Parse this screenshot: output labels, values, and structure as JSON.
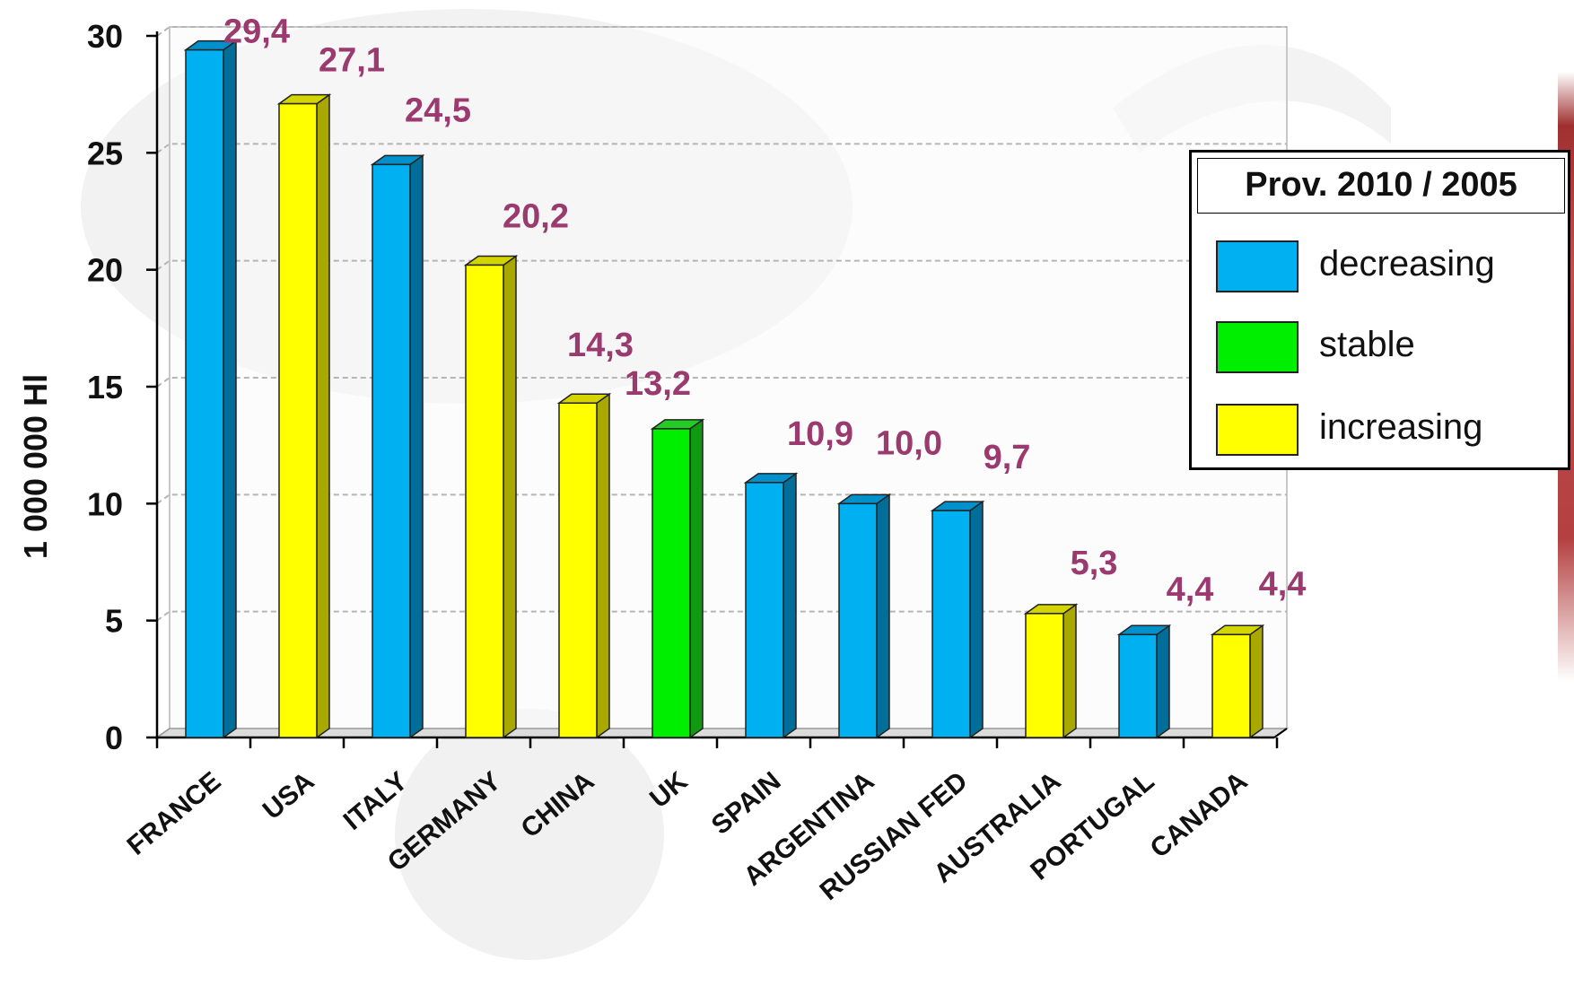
{
  "chart_data": {
    "type": "bar",
    "ylabel": "1 000 000  Hl",
    "ylim": [
      0,
      30
    ],
    "yticks": [
      "0",
      "5",
      "10",
      "15",
      "20",
      "25",
      "30"
    ],
    "grid": true,
    "categories": [
      "FRANCE",
      "USA",
      "ITALY",
      "GERMANY",
      "CHINA",
      "UK",
      "SPAIN",
      "ARGENTINA",
      "RUSSIAN FED",
      "AUSTRALIA",
      "PORTUGAL",
      "CANADA"
    ],
    "values": [
      29.4,
      27.1,
      24.5,
      20.2,
      14.3,
      13.2,
      10.9,
      10.0,
      9.7,
      5.3,
      4.4,
      4.4
    ],
    "value_labels": [
      "29,4",
      "27,1",
      "24,5",
      "20,2",
      "14,3",
      "13,2",
      "10,9",
      "10,0",
      "9,7",
      "5,3",
      "4,4",
      "4,4"
    ],
    "trend": [
      "decreasing",
      "increasing",
      "decreasing",
      "increasing",
      "increasing",
      "stable",
      "decreasing",
      "decreasing",
      "decreasing",
      "increasing",
      "decreasing",
      "increasing"
    ],
    "legend": {
      "title": "Prov. 2010 / 2005",
      "position": "right",
      "items": [
        {
          "key": "decreasing",
          "label": "decreasing",
          "color": "#00B0F0"
        },
        {
          "key": "stable",
          "label": "stable",
          "color": "#00EE00"
        },
        {
          "key": "increasing",
          "label": "increasing",
          "color": "#FFFF00"
        }
      ]
    },
    "colors": {
      "decreasing": {
        "front": "#00B0F0",
        "side": "#006E99",
        "top": "#0090CC"
      },
      "stable": {
        "front": "#00EE00",
        "side": "#119911",
        "top": "#22CC22"
      },
      "increasing": {
        "front": "#FFFF00",
        "side": "#A8A800",
        "top": "#D4D400"
      },
      "data_label": "#9B3A6E"
    }
  }
}
